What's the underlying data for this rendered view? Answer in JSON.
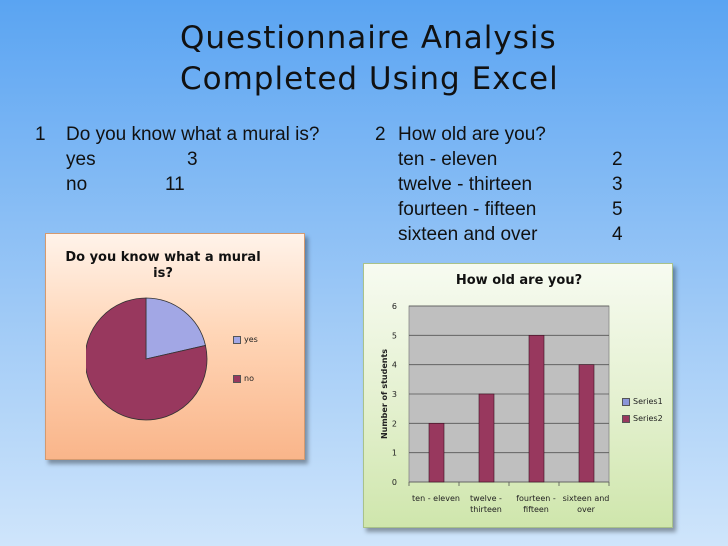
{
  "title": {
    "line1": "Questionnaire Analysis",
    "line2": "Completed Using Excel"
  },
  "q1": {
    "number": "1",
    "question": "Do you know what a mural is?",
    "rows": [
      {
        "label": "yes",
        "value": "3"
      },
      {
        "label": "no",
        "value": "11"
      }
    ]
  },
  "q2": {
    "number": "2",
    "question": "How old are you?",
    "rows": [
      {
        "label": "ten - eleven",
        "value": "2"
      },
      {
        "label": "twelve - thirteen",
        "value": "3"
      },
      {
        "label": "fourteen - fifteen",
        "value": "5"
      },
      {
        "label": "sixteen and over",
        "value": "4"
      }
    ]
  },
  "chart_data": [
    {
      "type": "pie",
      "title_line1": "Do you know what a mural",
      "title_line2": "is?",
      "categories": [
        "yes",
        "no"
      ],
      "values": [
        3,
        11
      ],
      "colors": [
        "#a2a7e5",
        "#98385e"
      ],
      "legend": "right"
    },
    {
      "type": "bar",
      "title": "How old are you?",
      "ylabel": "Number of students",
      "categories": [
        "ten - eleven",
        "twelve - thirteen",
        "fourteen - fifteen",
        "sixteen and over"
      ],
      "category_lines": [
        [
          "ten - eleven"
        ],
        [
          "twelve -",
          "thirteen"
        ],
        [
          "fourteen -",
          "fifteen"
        ],
        [
          "sixteen and",
          "over"
        ]
      ],
      "series": [
        {
          "name": "Series1",
          "values": [
            0,
            0,
            0,
            0
          ],
          "color": "#8a95d8"
        },
        {
          "name": "Series2",
          "values": [
            2,
            3,
            5,
            4
          ],
          "color": "#98385e"
        }
      ],
      "ylim": [
        0,
        6
      ],
      "yticks": [
        "0",
        "1",
        "2",
        "3",
        "4",
        "5",
        "6"
      ],
      "grid": true,
      "legend": "right"
    }
  ]
}
